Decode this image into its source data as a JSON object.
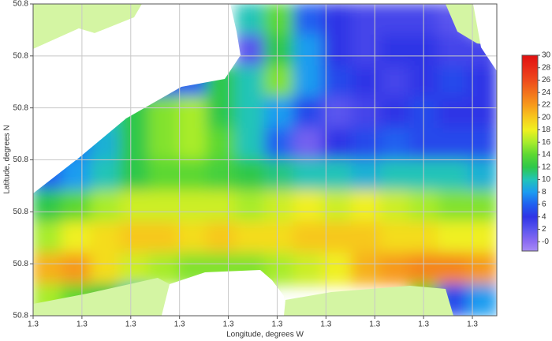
{
  "chart_data": {
    "type": "contour",
    "xlabel": "Longitude, degrees W",
    "ylabel": "Latitude, degrees N",
    "xlim": [
      1.25,
      1.345
    ],
    "xticks": [
      {
        "value": 1.25,
        "label": "1.3"
      },
      {
        "value": 1.26,
        "label": "1.3"
      },
      {
        "value": 1.27,
        "label": "1.3"
      },
      {
        "value": 1.28,
        "label": "1.3"
      },
      {
        "value": 1.29,
        "label": "1.3"
      },
      {
        "value": 1.3,
        "label": "1.3"
      },
      {
        "value": 1.31,
        "label": "1.3"
      },
      {
        "value": 1.32,
        "label": "1.3"
      },
      {
        "value": 1.33,
        "label": "1.3"
      },
      {
        "value": 1.34,
        "label": "1.3"
      }
    ],
    "ylim": [
      50.77,
      50.83
    ],
    "yticks": [
      {
        "value": 50.77,
        "label": "50.8"
      },
      {
        "value": 50.78,
        "label": "50.8"
      },
      {
        "value": 50.79,
        "label": "50.8"
      },
      {
        "value": 50.8,
        "label": "50.8"
      },
      {
        "value": 50.81,
        "label": "50.8"
      },
      {
        "value": 50.82,
        "label": "50.8"
      },
      {
        "value": 50.83,
        "label": "50.8"
      }
    ],
    "grid": true,
    "z": [
      [
        null,
        null,
        null,
        null,
        null,
        null,
        null,
        10,
        14,
        6,
        4,
        3,
        3,
        3,
        2,
        null
      ],
      [
        null,
        null,
        null,
        null,
        null,
        null,
        null,
        2,
        12,
        8,
        4,
        3,
        4,
        4,
        3,
        3
      ],
      [
        null,
        null,
        null,
        6,
        5,
        6,
        12,
        10,
        15,
        8,
        5,
        4,
        3,
        4,
        5,
        4
      ],
      [
        null,
        8,
        10,
        12,
        15,
        16,
        12,
        10,
        8,
        5,
        2,
        3,
        4,
        5,
        4,
        4
      ],
      [
        6,
        7,
        9,
        12,
        15,
        16,
        14,
        10,
        6,
        1,
        4,
        5,
        6,
        5,
        5,
        5
      ],
      [
        6,
        8,
        10,
        12,
        14,
        14,
        13,
        12,
        11,
        10,
        10,
        9,
        10,
        10,
        10,
        9
      ],
      [
        12,
        14,
        16,
        17,
        17,
        17,
        17,
        16,
        17,
        18,
        17,
        18,
        17,
        16,
        15,
        15
      ],
      [
        16,
        18,
        19,
        20,
        20,
        19,
        20,
        19,
        19,
        20,
        20,
        20,
        19,
        19,
        18,
        18
      ],
      [
        21,
        22,
        19,
        17,
        16,
        15,
        15,
        15,
        16,
        17,
        18,
        21,
        22,
        23,
        23,
        22
      ],
      [
        16,
        14,
        12,
        10,
        null,
        null,
        null,
        14,
        null,
        null,
        null,
        null,
        null,
        14,
        5,
        8
      ]
    ],
    "colorbar": {
      "lim": [
        -1.5,
        30
      ],
      "ticks": [
        {
          "value": 0,
          "label": "-0"
        },
        2,
        4,
        6,
        8,
        10,
        12,
        14,
        16,
        18,
        20,
        22,
        24,
        26,
        28,
        30
      ],
      "colorscale": [
        [
          -1.5,
          "#a78cf5"
        ],
        [
          0,
          "#8c6cf2"
        ],
        [
          2,
          "#5a55ee"
        ],
        [
          4,
          "#2f34e6"
        ],
        [
          6,
          "#2060f0"
        ],
        [
          8,
          "#1c9cf0"
        ],
        [
          10,
          "#22c4b8"
        ],
        [
          12,
          "#2ec84a"
        ],
        [
          14,
          "#5cd832"
        ],
        [
          16,
          "#a8ec2c"
        ],
        [
          18,
          "#f0f020"
        ],
        [
          20,
          "#f7c81e"
        ],
        [
          22,
          "#f79a1c"
        ],
        [
          24,
          "#f2721c"
        ],
        [
          26,
          "#ee4a1c"
        ],
        [
          28,
          "#e82a18"
        ],
        [
          30,
          "#e01010"
        ]
      ]
    }
  }
}
